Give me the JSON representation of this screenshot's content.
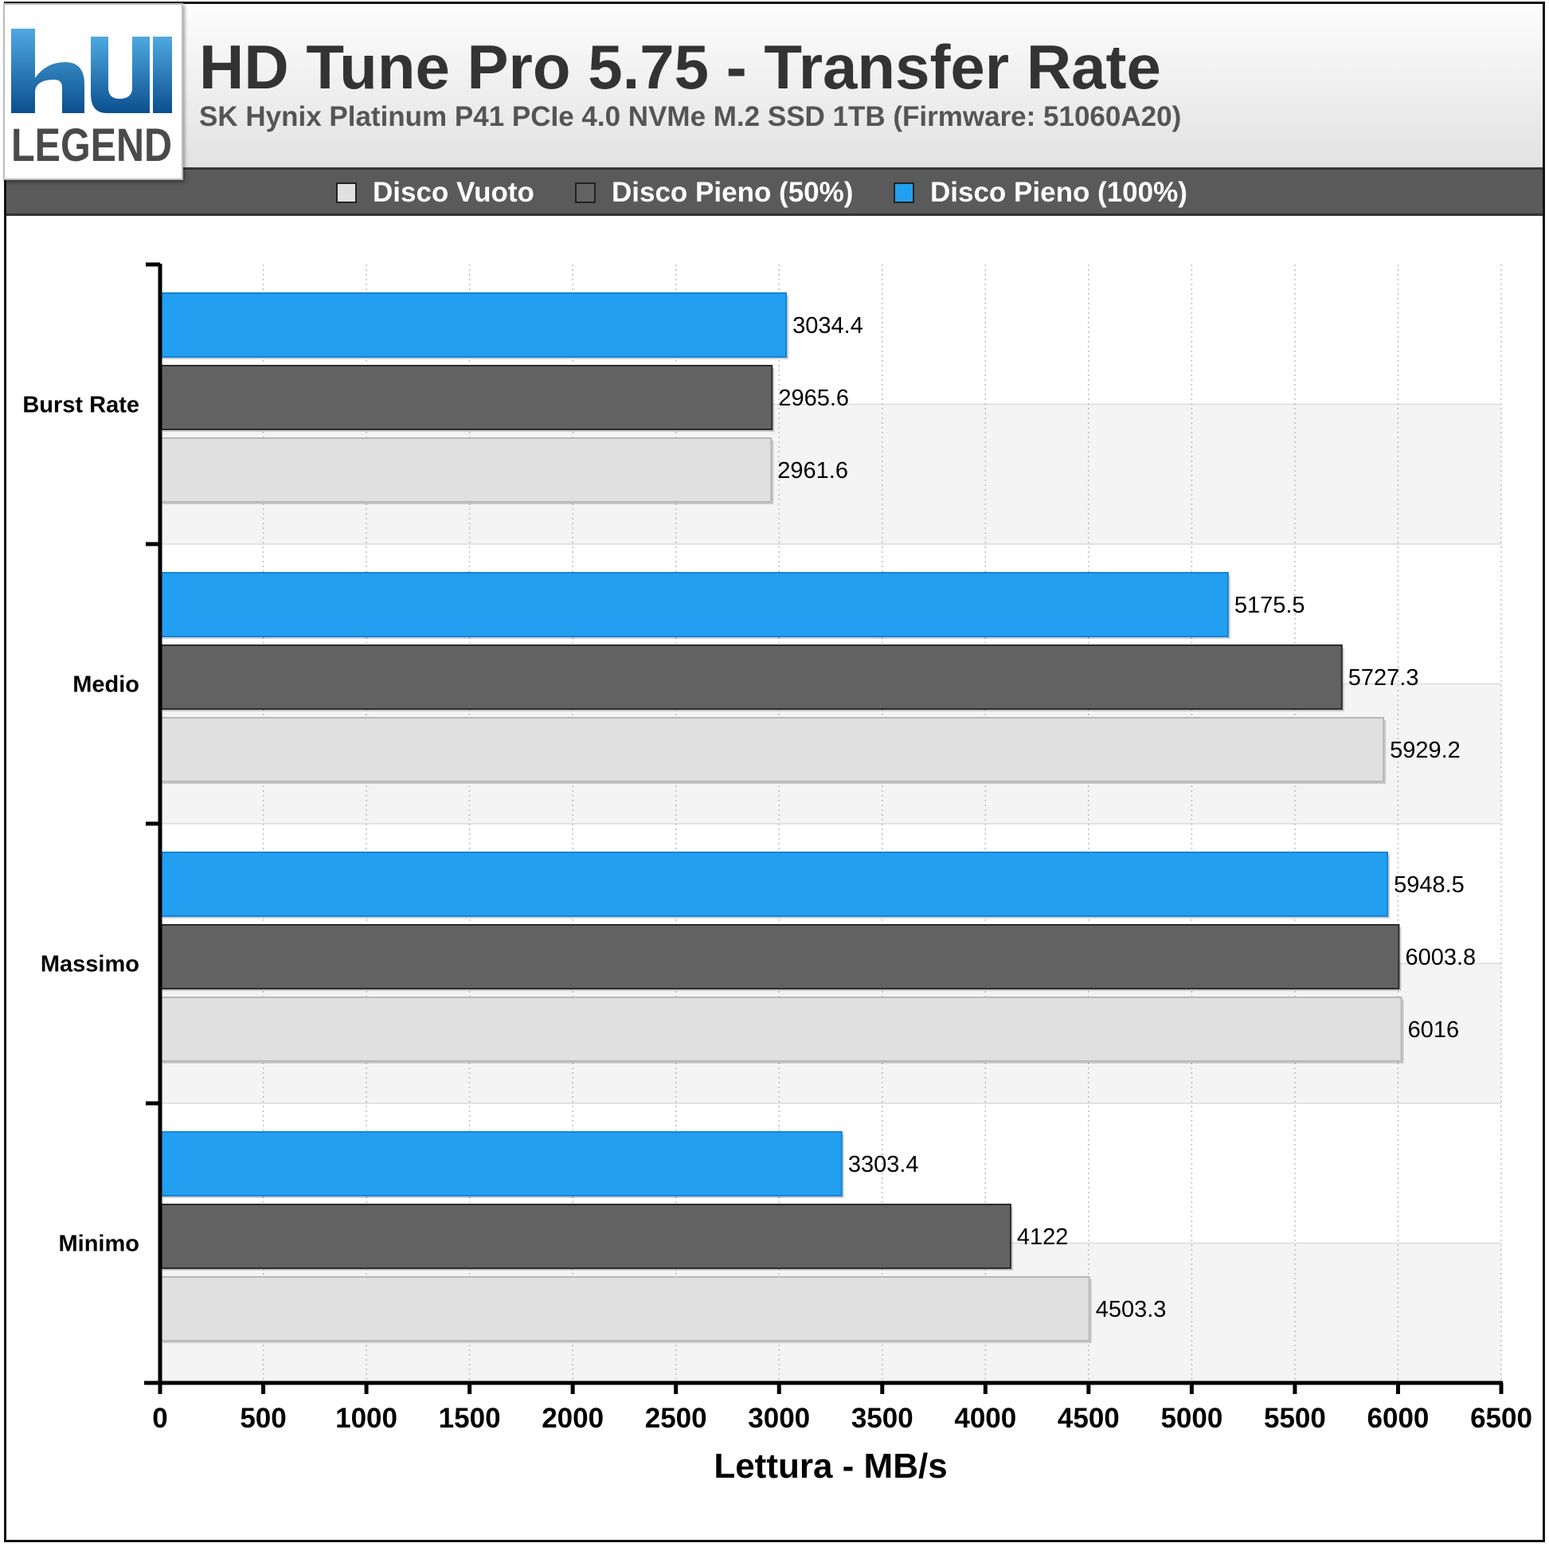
{
  "header": {
    "logo_text": "hu LEGEND",
    "title": "HD Tune Pro 5.75 - Transfer Rate",
    "subtitle": "SK Hynix Platinum P41 PCIe 4.0 NVMe M.2 SSD 1TB (Firmware: 51060A20)"
  },
  "legend": [
    {
      "label": "Disco Vuoto",
      "color": "#e0e0e0"
    },
    {
      "label": "Disco Pieno (50%)",
      "color": "#626262"
    },
    {
      "label": "Disco Pieno (100%)",
      "color": "#229ff0"
    }
  ],
  "chart_data": {
    "type": "bar",
    "orientation": "horizontal",
    "categories": [
      "Burst Rate",
      "Medio",
      "Massimo",
      "Minimo"
    ],
    "series": [
      {
        "name": "Disco Pieno (100%)",
        "color": "#229ff0",
        "values": [
          3034.4,
          5175.5,
          5948.5,
          3303.4
        ]
      },
      {
        "name": "Disco Pieno (50%)",
        "color": "#626262",
        "values": [
          2965.6,
          5727.3,
          6003.8,
          4122
        ]
      },
      {
        "name": "Disco Vuoto",
        "color": "#e0e0e0",
        "values": [
          2961.6,
          5929.2,
          6016,
          4503.3
        ]
      }
    ],
    "value_labels": [
      [
        "3034.4",
        "5175.5",
        "5948.5",
        "3303.4"
      ],
      [
        "2965.6",
        "5727.3",
        "6003.8",
        "4122"
      ],
      [
        "2961.6",
        "5929.2",
        "6016",
        "4503.3"
      ]
    ],
    "xlim": [
      0,
      6500
    ],
    "xticks": [
      0,
      500,
      1000,
      1500,
      2000,
      2500,
      3000,
      3500,
      4000,
      4500,
      5000,
      5500,
      6000,
      6500
    ],
    "xlabel": "Lettura - MB/s",
    "grid": "vertical dotted",
    "legend_position": "top"
  }
}
